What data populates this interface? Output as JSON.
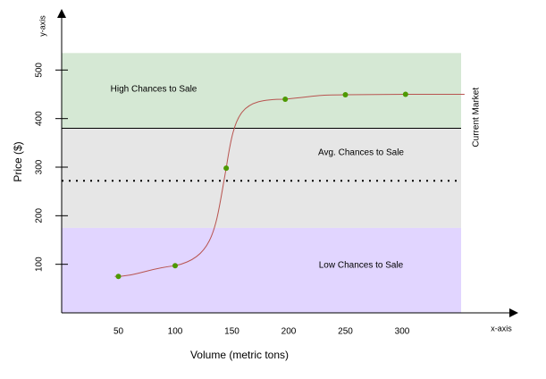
{
  "chart_data": {
    "type": "line",
    "xlabel": "Volume (metric tons)",
    "ylabel": "Price ($)",
    "x_axis_name": "x-axis",
    "y_axis_name": "y-axis",
    "x_ticks": [
      "50",
      "100",
      "150",
      "200",
      "250",
      "300"
    ],
    "y_ticks": [
      "100",
      "200",
      "300",
      "400",
      "500"
    ],
    "xlim": [
      0,
      350
    ],
    "ylim": [
      0,
      550
    ],
    "series": [
      {
        "points": [
          [
            50,
            75
          ],
          [
            100,
            97
          ],
          [
            145,
            298
          ],
          [
            197,
            440
          ],
          [
            250,
            449
          ],
          [
            303,
            450
          ]
        ],
        "curve_end_x": 355,
        "line_color": "#b85450",
        "marker_color": "#4d9900"
      }
    ],
    "zones": [
      {
        "label": "High Chances to Sale",
        "y_from": 380,
        "y_to": 535,
        "color": "#d5e8d4"
      },
      {
        "label": "Avg. Chances to Sale",
        "y_from": 175,
        "y_to": 380,
        "color": "#e6e6e6"
      },
      {
        "label": "Low Chances to Sale",
        "y_from": 0,
        "y_to": 175,
        "color": "#e1d5ff"
      }
    ],
    "reference_lines": [
      {
        "label": "Current Market",
        "y": 272,
        "style": "dotted"
      },
      {
        "label": "",
        "y": 380,
        "style": "solid"
      }
    ]
  }
}
